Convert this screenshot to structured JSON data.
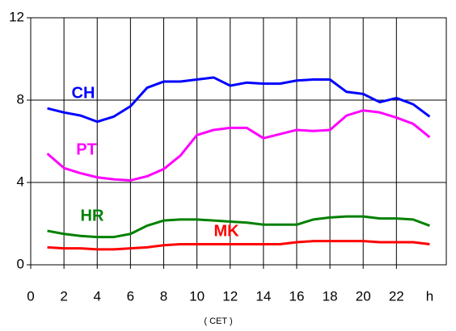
{
  "chart_data": {
    "type": "line",
    "x_label": "( CET )",
    "x": [
      1,
      2,
      3,
      4,
      5,
      6,
      7,
      8,
      9,
      10,
      11,
      12,
      13,
      14,
      15,
      16,
      17,
      18,
      19,
      20,
      21,
      22,
      23,
      24
    ],
    "series": [
      {
        "name": "CH",
        "color": "#0000ff",
        "values": [
          7.6,
          7.4,
          7.25,
          6.95,
          7.2,
          7.7,
          8.6,
          8.9,
          8.9,
          9.0,
          9.1,
          8.7,
          8.85,
          8.8,
          8.8,
          8.95,
          9.0,
          9.0,
          8.4,
          8.3,
          7.9,
          8.1,
          7.8,
          7.2
        ]
      },
      {
        "name": "PT",
        "color": "#ff00ff",
        "values": [
          5.4,
          4.7,
          4.45,
          4.25,
          4.15,
          4.1,
          4.3,
          4.65,
          5.3,
          6.3,
          6.55,
          6.65,
          6.65,
          6.15,
          6.35,
          6.55,
          6.5,
          6.55,
          7.25,
          7.5,
          7.4,
          7.15,
          6.85,
          6.2
        ]
      },
      {
        "name": "HR",
        "color": "#008000",
        "values": [
          1.65,
          1.5,
          1.4,
          1.35,
          1.35,
          1.5,
          1.9,
          2.15,
          2.2,
          2.2,
          2.15,
          2.1,
          2.05,
          1.95,
          1.95,
          1.95,
          2.2,
          2.3,
          2.35,
          2.35,
          2.25,
          2.25,
          2.2,
          1.9
        ]
      },
      {
        "name": "MK",
        "color": "#ff0000",
        "values": [
          0.85,
          0.8,
          0.8,
          0.75,
          0.75,
          0.8,
          0.85,
          0.95,
          1.0,
          1.0,
          1.0,
          1.0,
          1.0,
          1.0,
          1.0,
          1.1,
          1.15,
          1.15,
          1.15,
          1.15,
          1.1,
          1.1,
          1.1,
          1.0
        ]
      }
    ],
    "xlim": [
      0,
      25
    ],
    "xticks": [
      0,
      2,
      4,
      6,
      8,
      10,
      12,
      14,
      16,
      18,
      20,
      22,
      {
        "value": 24,
        "label": "h"
      }
    ],
    "ylim": [
      0,
      12
    ],
    "yticks": [
      0,
      4,
      8,
      12
    ],
    "grid": true
  }
}
